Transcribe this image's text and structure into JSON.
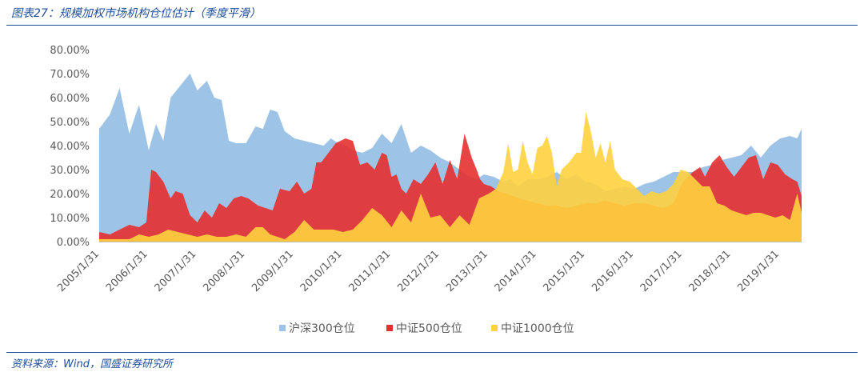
{
  "header": {
    "title": "图表27：规模加权市场机构仓位估计（季度平滑）"
  },
  "footer": {
    "source": "资料来源：Wind，国盛证券研究所"
  },
  "chart_data": {
    "type": "area",
    "title": "图表27：规模加权市场机构仓位估计（季度平滑）",
    "xlabel": "",
    "ylabel": "",
    "x_ticks": [
      "2005/1/31",
      "2006/1/31",
      "2007/1/31",
      "2008/1/31",
      "2009/1/31",
      "2010/1/31",
      "2011/1/31",
      "2012/1/31",
      "2013/1/31",
      "2014/1/31",
      "2015/1/31",
      "2016/1/31",
      "2017/1/31",
      "2018/1/31",
      "2019/1/31"
    ],
    "y_ticks": [
      "0.00%",
      "10.00%",
      "20.00%",
      "30.00%",
      "40.00%",
      "50.00%",
      "60.00%",
      "70.00%",
      "80.00%"
    ],
    "ylim": [
      0,
      80
    ],
    "xlim": [
      2005.08,
      2019.54
    ],
    "legend": "bottom",
    "grid": false,
    "series": [
      {
        "name": "沪深300仓位",
        "color": "#9dc3e6",
        "x": [
          2005.08,
          2005.3,
          2005.5,
          2005.7,
          2005.9,
          2006.1,
          2006.25,
          2006.4,
          2006.55,
          2006.75,
          2006.95,
          2007.1,
          2007.3,
          2007.45,
          2007.6,
          2007.75,
          2007.9,
          2008.1,
          2008.3,
          2008.45,
          2008.6,
          2008.75,
          2008.9,
          2009.1,
          2009.3,
          2009.5,
          2009.7,
          2009.85,
          2010.0,
          2010.15,
          2010.3,
          2010.5,
          2010.7,
          2010.9,
          2011.1,
          2011.3,
          2011.5,
          2011.7,
          2011.9,
          2012.1,
          2012.3,
          2012.5,
          2012.7,
          2012.85,
          2013.0,
          2013.2,
          2013.4,
          2013.55,
          2013.7,
          2013.9,
          2014.1,
          2014.3,
          2014.5,
          2014.7,
          2014.9,
          2015.1,
          2015.3,
          2015.5,
          2015.7,
          2015.9,
          2016.1,
          2016.3,
          2016.5,
          2016.7,
          2016.9,
          2017.1,
          2017.3,
          2017.5,
          2017.7,
          2017.9,
          2018.1,
          2018.3,
          2018.5,
          2018.7,
          2018.9,
          2019.1,
          2019.3,
          2019.45,
          2019.54
        ],
        "values": [
          47,
          53,
          64,
          45,
          57,
          38,
          49,
          42,
          60,
          65,
          70,
          63,
          67,
          60,
          59,
          42,
          41,
          41,
          48,
          47,
          55,
          54,
          46,
          43,
          42,
          41,
          40,
          43,
          41,
          40,
          38,
          37,
          39,
          45,
          41,
          49,
          37,
          40,
          38,
          35,
          33,
          30,
          27,
          26,
          28,
          27,
          25,
          26,
          23,
          26,
          26,
          27,
          29,
          26,
          28,
          25,
          24,
          21,
          22,
          23,
          22,
          24,
          25,
          27,
          29,
          29,
          29,
          31,
          32,
          34,
          35,
          36,
          40,
          35,
          40,
          43,
          44,
          43,
          47
        ]
      },
      {
        "name": "中证500仓位",
        "color": "#e53030",
        "x": [
          2005.08,
          2005.3,
          2005.5,
          2005.7,
          2005.9,
          2006.05,
          2006.15,
          2006.25,
          2006.4,
          2006.55,
          2006.65,
          2006.8,
          2006.95,
          2007.1,
          2007.25,
          2007.4,
          2007.55,
          2007.7,
          2007.85,
          2008.0,
          2008.15,
          2008.35,
          2008.5,
          2008.65,
          2008.8,
          2009.0,
          2009.15,
          2009.3,
          2009.45,
          2009.55,
          2009.65,
          2009.8,
          2009.95,
          2010.15,
          2010.3,
          2010.45,
          2010.6,
          2010.75,
          2010.9,
          2011.0,
          2011.1,
          2011.2,
          2011.3,
          2011.4,
          2011.55,
          2011.7,
          2011.85,
          2012.0,
          2012.15,
          2012.3,
          2012.45,
          2012.6,
          2012.75,
          2012.85,
          2012.92,
          2013.0,
          2013.15,
          2013.3,
          2013.45,
          2013.6,
          2013.75,
          2013.9,
          2014.1,
          2014.3,
          2014.5,
          2014.7,
          2014.9,
          2015.1,
          2015.3,
          2015.5,
          2015.7,
          2015.9,
          2016.1,
          2016.3,
          2016.5,
          2016.7,
          2016.9,
          2017.1,
          2017.3,
          2017.45,
          2017.55,
          2017.7,
          2017.85,
          2018.0,
          2018.15,
          2018.3,
          2018.45,
          2018.6,
          2018.75,
          2018.9,
          2019.05,
          2019.2,
          2019.35,
          2019.45,
          2019.54
        ],
        "values": [
          4,
          3,
          5,
          7,
          6,
          8,
          30,
          29,
          25,
          18,
          21,
          20,
          11,
          8,
          13,
          10,
          16,
          14,
          18,
          19,
          18,
          15,
          14,
          13,
          22,
          21,
          25,
          20,
          22,
          33,
          33,
          37,
          41,
          43,
          42,
          32,
          33,
          30,
          37,
          36,
          27,
          28,
          22,
          20,
          26,
          24,
          28,
          33,
          24,
          34,
          26,
          45,
          35,
          30,
          26,
          24,
          23,
          21,
          20,
          19,
          18,
          17,
          16,
          15,
          15,
          14,
          15,
          16,
          16,
          17,
          16,
          15,
          16,
          16,
          15,
          14,
          16,
          25,
          29,
          31,
          27,
          33,
          36,
          31,
          27,
          31,
          35,
          36,
          26,
          33,
          32,
          28,
          26,
          25,
          19
        ]
      },
      {
        "name": "中证1000仓位",
        "color": "#ffd23f",
        "x": [
          2005.08,
          2005.3,
          2005.5,
          2005.7,
          2005.9,
          2006.1,
          2006.3,
          2006.5,
          2006.7,
          2006.9,
          2007.1,
          2007.3,
          2007.5,
          2007.7,
          2007.9,
          2008.1,
          2008.3,
          2008.45,
          2008.6,
          2008.75,
          2008.9,
          2009.1,
          2009.3,
          2009.5,
          2009.7,
          2009.9,
          2010.1,
          2010.3,
          2010.5,
          2010.7,
          2010.9,
          2011.1,
          2011.3,
          2011.5,
          2011.7,
          2011.9,
          2012.1,
          2012.3,
          2012.5,
          2012.7,
          2012.9,
          2013.1,
          2013.25,
          2013.4,
          2013.5,
          2013.6,
          2013.7,
          2013.8,
          2013.9,
          2014.0,
          2014.1,
          2014.2,
          2014.3,
          2014.4,
          2014.5,
          2014.6,
          2014.75,
          2014.9,
          2015.0,
          2015.1,
          2015.2,
          2015.3,
          2015.4,
          2015.5,
          2015.6,
          2015.7,
          2015.85,
          2016.0,
          2016.15,
          2016.3,
          2016.45,
          2016.6,
          2016.75,
          2016.9,
          2017.05,
          2017.2,
          2017.35,
          2017.5,
          2017.65,
          2017.8,
          2017.95,
          2018.1,
          2018.25,
          2018.4,
          2018.55,
          2018.7,
          2018.85,
          2019.0,
          2019.15,
          2019.3,
          2019.45,
          2019.54
        ],
        "values": [
          1,
          1,
          1,
          1,
          3,
          2,
          3,
          5,
          4,
          3,
          2,
          3,
          2,
          2,
          3,
          2,
          6,
          6,
          3,
          2,
          1,
          4,
          9,
          5,
          5,
          5,
          4,
          5,
          9,
          14,
          11,
          6,
          13,
          8,
          20,
          10,
          11,
          6,
          11,
          7,
          18,
          20,
          22,
          29,
          41,
          29,
          30,
          42,
          33,
          28,
          39,
          40,
          44,
          37,
          23,
          30,
          33,
          37,
          37,
          54,
          46,
          35,
          41,
          33,
          42,
          30,
          26,
          25,
          22,
          19,
          21,
          20,
          21,
          24,
          30,
          29,
          26,
          23,
          23,
          16,
          15,
          13,
          12,
          11,
          12,
          12,
          11,
          10,
          11,
          9,
          20,
          12
        ]
      }
    ]
  }
}
